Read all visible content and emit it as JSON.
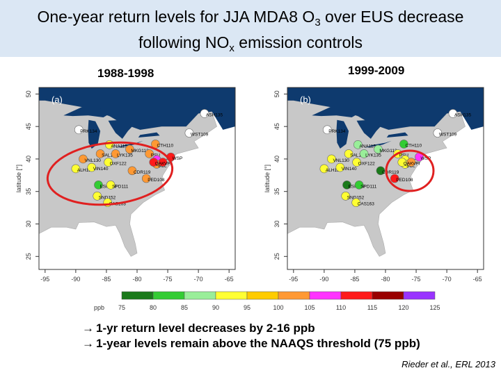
{
  "title": {
    "line1_prefix": "One-year return levels for JJA MDA8 O",
    "line1_sub": "3",
    "line1_suffix": " over EUS decrease",
    "line2_prefix": "following NO",
    "line2_sub": "x",
    "line2_suffix": " emission controls"
  },
  "periods": [
    "1988-1998",
    "1999-2009"
  ],
  "panels": [
    {
      "label": "(a)",
      "stations": [
        {
          "name": "PRK134",
          "lon": -89.5,
          "lat": 44.5,
          "color": "#ffffff"
        },
        {
          "name": "ASH135",
          "lon": -69,
          "lat": 47,
          "color": "#ffffff"
        },
        {
          "name": "WST109",
          "lon": -71.5,
          "lat": 44,
          "color": "#ffffff"
        },
        {
          "name": "ANA115",
          "lon": -84.5,
          "lat": 42.2,
          "color": "#ffff33"
        },
        {
          "name": "CTH110",
          "lon": -77,
          "lat": 42.3,
          "color": "#ff9933"
        },
        {
          "name": "MKG113",
          "lon": -81.2,
          "lat": 41.5,
          "color": "#ff9933"
        },
        {
          "name": "SAL133",
          "lon": -86,
          "lat": 40.8,
          "color": "#ff9933"
        },
        {
          "name": "LYK135",
          "lon": -83.5,
          "lat": 40.8,
          "color": "#ff9933"
        },
        {
          "name": "PSU",
          "lon": -78,
          "lat": 40.8,
          "color": "#ff9933"
        },
        {
          "name": "WSP",
          "lon": -74.5,
          "lat": 40.3,
          "color": "#ff1a1a"
        },
        {
          "name": "ARE",
          "lon": -76.8,
          "lat": 39.9,
          "color": "#ff33ff"
        },
        {
          "name": "BEL",
          "lon": -76.8,
          "lat": 39.2,
          "color": "#ff9933"
        },
        {
          "name": "VPI",
          "lon": -75.8,
          "lat": 39.5,
          "color": "#ff1a1a"
        },
        {
          "name": "QAK",
          "lon": -77.3,
          "lat": 39.5,
          "color": "#ff1a1a"
        },
        {
          "name": "VNL130",
          "lon": -88.8,
          "lat": 40,
          "color": "#ff9933"
        },
        {
          "name": "OXF122",
          "lon": -84.7,
          "lat": 39.5,
          "color": "#ffff33"
        },
        {
          "name": "CDR119",
          "lon": -80.8,
          "lat": 38.2,
          "color": "#ff9933"
        },
        {
          "name": "ALH157",
          "lon": -90,
          "lat": 38.5,
          "color": "#ffff33"
        },
        {
          "name": "VIN140",
          "lon": -87.4,
          "lat": 38.7,
          "color": "#ffff33"
        },
        {
          "name": "PED108",
          "lon": -78.5,
          "lat": 37,
          "color": "#ff9933"
        },
        {
          "name": "ESP127",
          "lon": -86.3,
          "lat": 36,
          "color": "#33cc33"
        },
        {
          "name": "SPD111",
          "lon": -84.3,
          "lat": 36,
          "color": "#ffff33"
        },
        {
          "name": "SND152",
          "lon": -86.5,
          "lat": 34.3,
          "color": "#ffff33"
        },
        {
          "name": "CAS163",
          "lon": -84.8,
          "lat": 33.3,
          "color": "#ffff33"
        }
      ]
    },
    {
      "label": "(b)",
      "stations": [
        {
          "name": "PRK134",
          "lon": -89.5,
          "lat": 44.5,
          "color": "#ffffff"
        },
        {
          "name": "ASH135",
          "lon": -69,
          "lat": 47,
          "color": "#ffffff"
        },
        {
          "name": "WST109",
          "lon": -71.5,
          "lat": 44,
          "color": "#ffffff"
        },
        {
          "name": "ANA115",
          "lon": -84.5,
          "lat": 42.2,
          "color": "#99ee99"
        },
        {
          "name": "CTH110",
          "lon": -77,
          "lat": 42.3,
          "color": "#33cc33"
        },
        {
          "name": "MKG113",
          "lon": -81.2,
          "lat": 41.5,
          "color": "#99ee99"
        },
        {
          "name": "SAL133",
          "lon": -86,
          "lat": 40.8,
          "color": "#ffff33"
        },
        {
          "name": "LYK135",
          "lon": -83.5,
          "lat": 40.8,
          "color": "#99ee99"
        },
        {
          "name": "PSU",
          "lon": -78,
          "lat": 40.8,
          "color": "#ffff33"
        },
        {
          "name": "WSP",
          "lon": -74.5,
          "lat": 40.3,
          "color": "#ff33ff"
        },
        {
          "name": "ARE",
          "lon": -76.8,
          "lat": 39.9,
          "color": "#ffff33"
        },
        {
          "name": "BEL",
          "lon": -76.8,
          "lat": 39.2,
          "color": "#ffff33"
        },
        {
          "name": "VPI",
          "lon": -75.8,
          "lat": 39.5,
          "color": "#ff9933"
        },
        {
          "name": "QAK",
          "lon": -77.3,
          "lat": 39.5,
          "color": "#ffff33"
        },
        {
          "name": "VNL130",
          "lon": -88.8,
          "lat": 40,
          "color": "#ffff33"
        },
        {
          "name": "OXF122",
          "lon": -84.7,
          "lat": 39.5,
          "color": "#ffff33"
        },
        {
          "name": "CDR119",
          "lon": -80.8,
          "lat": 38.2,
          "color": "#1a7a1a"
        },
        {
          "name": "ALH157",
          "lon": -90,
          "lat": 38.5,
          "color": "#ffff33"
        },
        {
          "name": "VIN140",
          "lon": -87.4,
          "lat": 38.7,
          "color": "#ffff33"
        },
        {
          "name": "PED108",
          "lon": -78.5,
          "lat": 37,
          "color": "#ff1a1a"
        },
        {
          "name": "ESP127",
          "lon": -86.3,
          "lat": 36,
          "color": "#1a7a1a"
        },
        {
          "name": "SPD111",
          "lon": -84.3,
          "lat": 36,
          "color": "#33cc33"
        },
        {
          "name": "SND152",
          "lon": -86.5,
          "lat": 34.3,
          "color": "#ffff33"
        },
        {
          "name": "CAS163",
          "lon": -84.8,
          "lat": 33.3,
          "color": "#ffff33"
        }
      ]
    }
  ],
  "axes": {
    "x_ticks": [
      -95,
      -90,
      -85,
      -80,
      -75,
      -70,
      -65
    ],
    "y_ticks": [
      25,
      30,
      35,
      40,
      45,
      50
    ],
    "ylabel": "latitude [°]",
    "xlim": [
      -96,
      -64
    ],
    "ylim": [
      23,
      51
    ]
  },
  "colorbar": {
    "unit": "ppb",
    "ticks": [
      75,
      80,
      85,
      90,
      95,
      100,
      105,
      110,
      115,
      120,
      125
    ],
    "colors": [
      "#1a7a1a",
      "#33cc33",
      "#99ee99",
      "#ffff33",
      "#ffcc00",
      "#ff9933",
      "#ff33ff",
      "#ff1a1a",
      "#990000",
      "#9933ff"
    ]
  },
  "highlight": {
    "color": "#e02020"
  },
  "bullets": [
    "1-yr return level decreases by 2-16 ppb",
    "1-year levels remain above the NAAQS threshold (75 ppb)"
  ],
  "citation": "Rieder et al., ERL 2013",
  "palette": {
    "ocean": "#ffffff",
    "land": "#c8c8c8",
    "lakes": "#0e3a6e",
    "header_bg": "#dbe7f4"
  }
}
